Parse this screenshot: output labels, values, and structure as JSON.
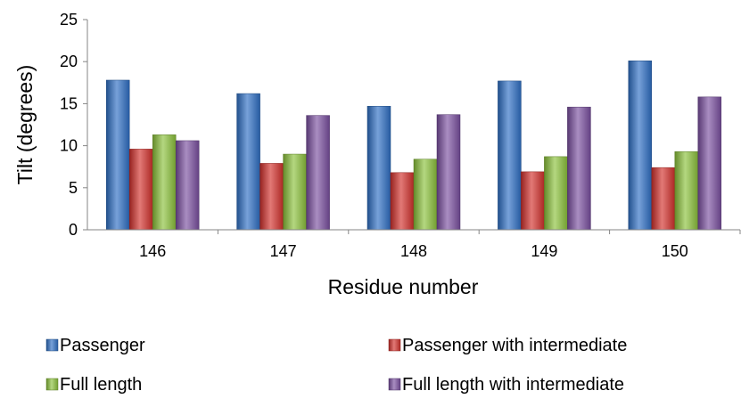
{
  "chart_data": {
    "type": "bar",
    "title": "",
    "xlabel": "Residue number",
    "ylabel": "Tilt (degrees)",
    "ylim": [
      0,
      25
    ],
    "yticks": [
      0,
      5,
      10,
      15,
      20,
      25
    ],
    "grid": false,
    "legend_position": "bottom",
    "categories": [
      "146",
      "147",
      "148",
      "149",
      "150"
    ],
    "series": [
      {
        "name": "Passenger",
        "values": [
          17.8,
          16.2,
          14.7,
          17.7,
          20.1
        ],
        "color": "#2e6fc4"
      },
      {
        "name": "Passenger with intermediate",
        "values": [
          9.6,
          7.9,
          6.8,
          6.9,
          7.4
        ],
        "color": "#d2312c"
      },
      {
        "name": "Full length",
        "values": [
          11.3,
          9.0,
          8.4,
          8.7,
          9.3
        ],
        "color": "#8bc13b"
      },
      {
        "name": "Full length with intermediate",
        "values": [
          10.6,
          13.6,
          13.7,
          14.6,
          15.8
        ],
        "color": "#7a4fa0"
      }
    ]
  }
}
